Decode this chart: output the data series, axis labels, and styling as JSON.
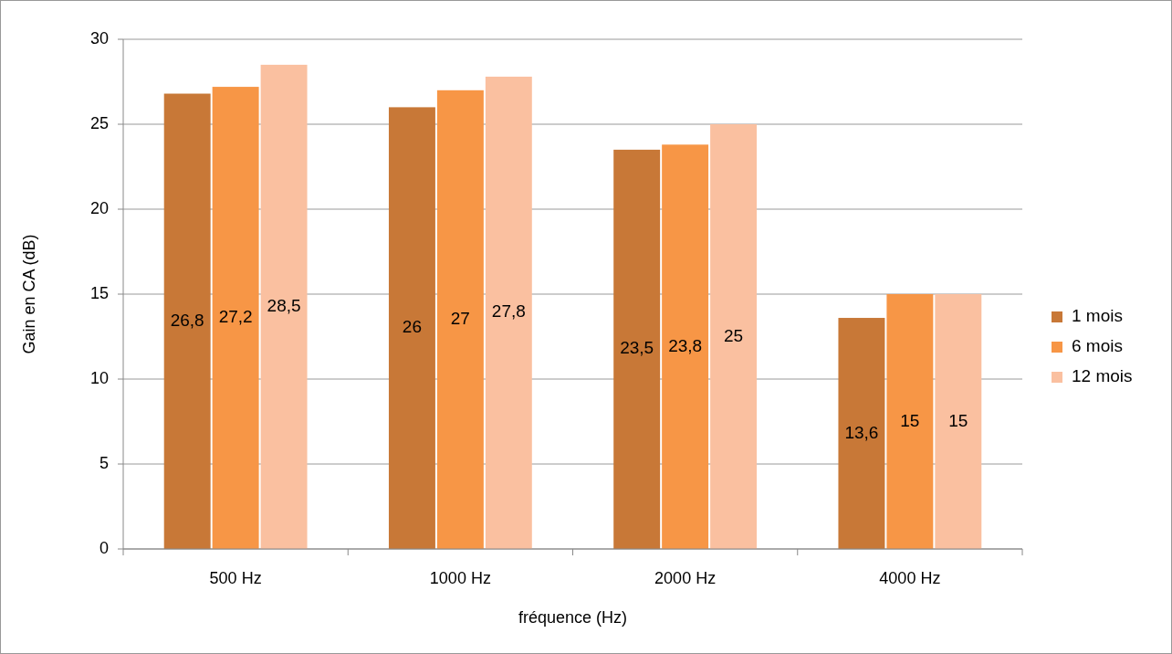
{
  "chart_data": {
    "type": "bar",
    "xlabel": "fréquence (Hz)",
    "ylabel": "Gain en CA (dB)",
    "categories": [
      "500 Hz",
      "1000 Hz",
      "2000 Hz",
      "4000 Hz"
    ],
    "series": [
      {
        "name": "1 mois",
        "color": "#c87837",
        "values": [
          26.8,
          26,
          23.5,
          13.6
        ],
        "value_labels": [
          "26,8",
          "26",
          "23,5",
          "13,6"
        ]
      },
      {
        "name": "6 mois",
        "color": "#f79646",
        "values": [
          27.2,
          27,
          23.8,
          15
        ],
        "value_labels": [
          "27,2",
          "27",
          "23,8",
          "15"
        ]
      },
      {
        "name": "12 mois",
        "color": "#fac0a0",
        "values": [
          28.5,
          27.8,
          25,
          15
        ],
        "value_labels": [
          "28,5",
          "27,8",
          "25",
          "15"
        ]
      }
    ],
    "ylim": [
      0,
      30
    ],
    "yticks": [
      0,
      5,
      10,
      15,
      20,
      25,
      30
    ],
    "grid": "y",
    "legend": "right"
  }
}
